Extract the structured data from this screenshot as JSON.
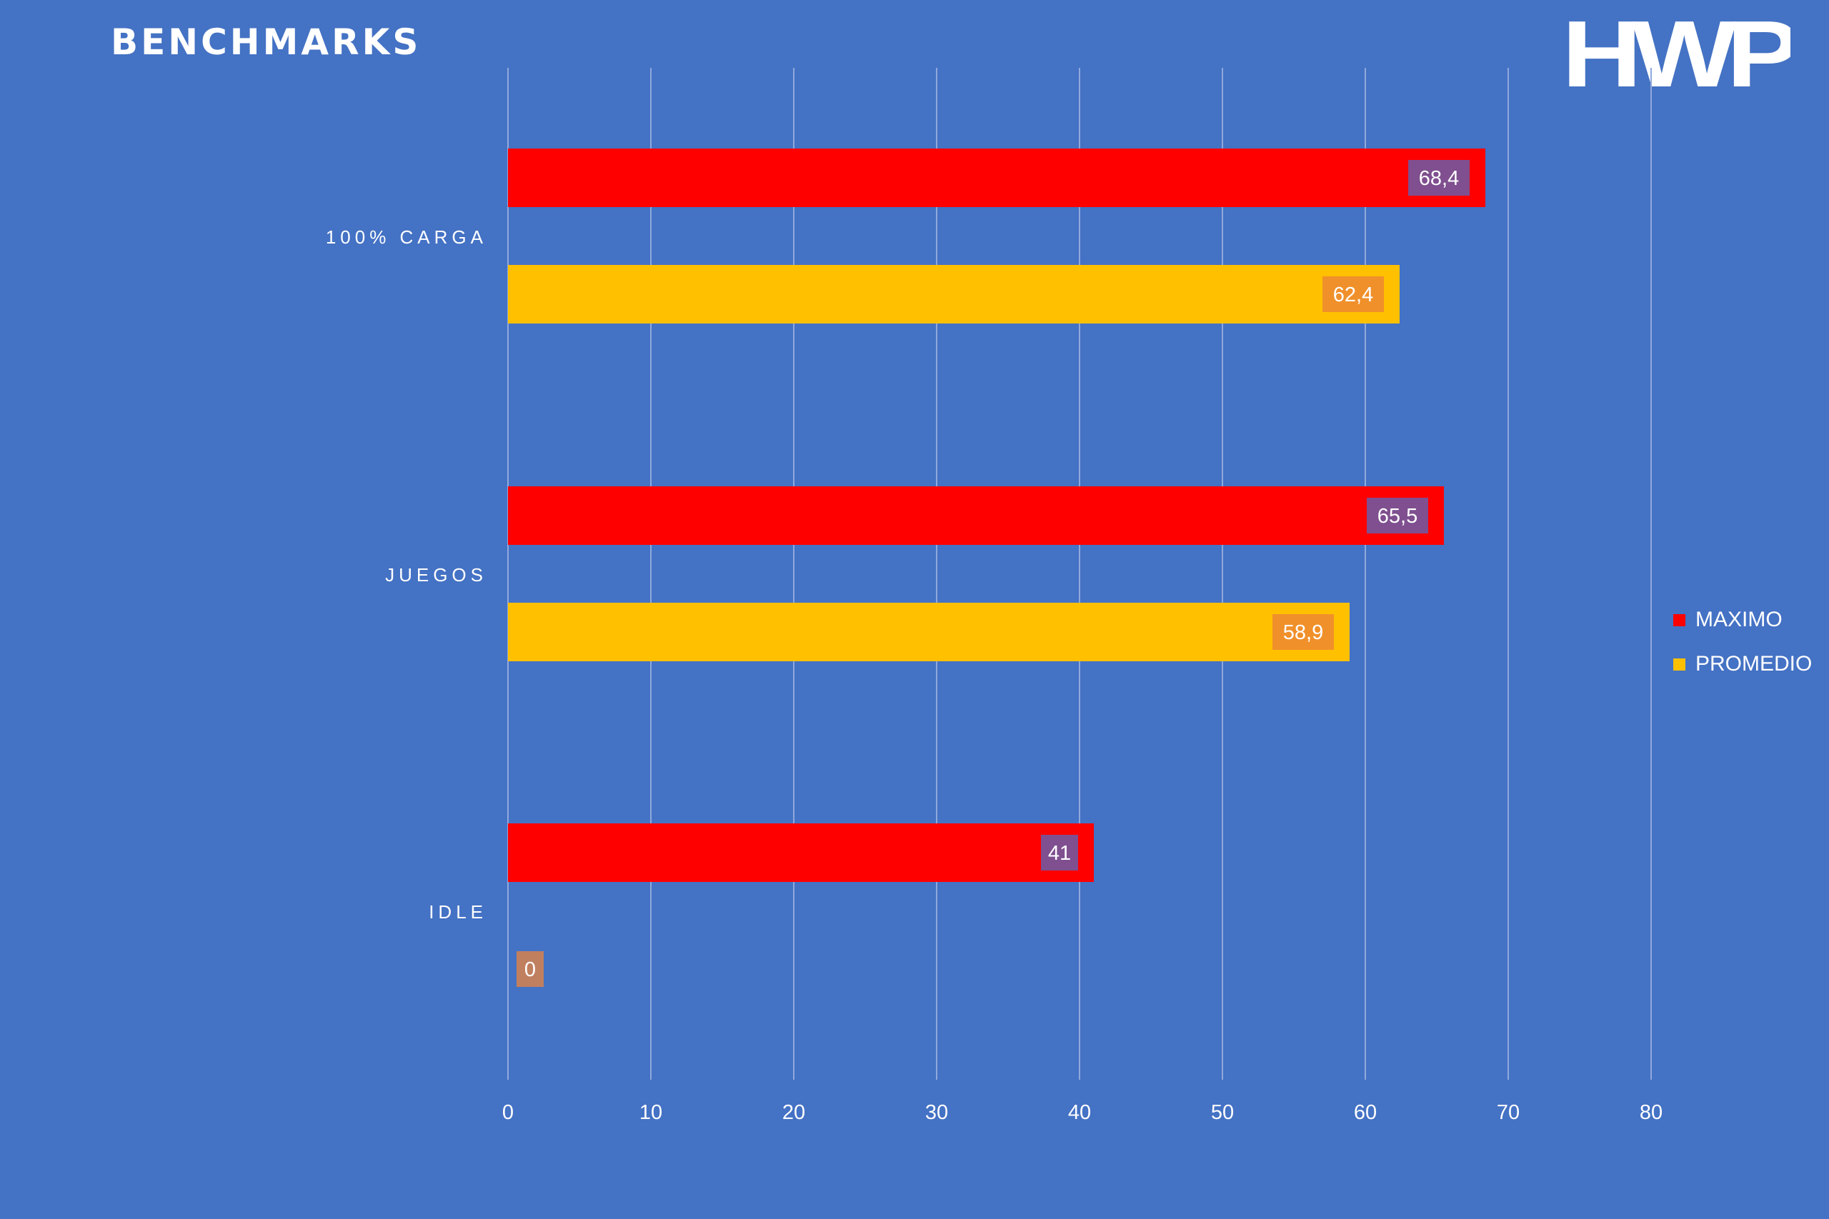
{
  "header": {
    "title": "BENCHMARKS",
    "logo_text": "HWP"
  },
  "colors": {
    "background": "#4472C4",
    "maximo": "#FF0000",
    "promedio": "#FFC000",
    "maximo_label_bg": "#7F4F8F",
    "promedio_label_bg": "#F0902A",
    "zero_label_bg": "#C08060",
    "gridline": "#8FA9DC"
  },
  "chart_data": {
    "type": "bar",
    "orientation": "horizontal",
    "title": "BENCHMARKS",
    "categories": [
      "100% CARGA",
      "JUEGOS",
      "IDLE"
    ],
    "series": [
      {
        "name": "MAXIMO",
        "color": "#FF0000",
        "values": [
          68.4,
          65.5,
          41
        ],
        "labels": [
          "68,4",
          "65,5",
          "41"
        ]
      },
      {
        "name": "PROMEDIO",
        "color": "#FFC000",
        "values": [
          62.4,
          58.9,
          0
        ],
        "labels": [
          "62,4",
          "58,9",
          "0"
        ]
      }
    ],
    "xlim": [
      0,
      80
    ],
    "xticks": [
      "0",
      "10",
      "20",
      "30",
      "40",
      "50",
      "60",
      "70",
      "80"
    ],
    "grid": true,
    "legend_position": "right"
  }
}
